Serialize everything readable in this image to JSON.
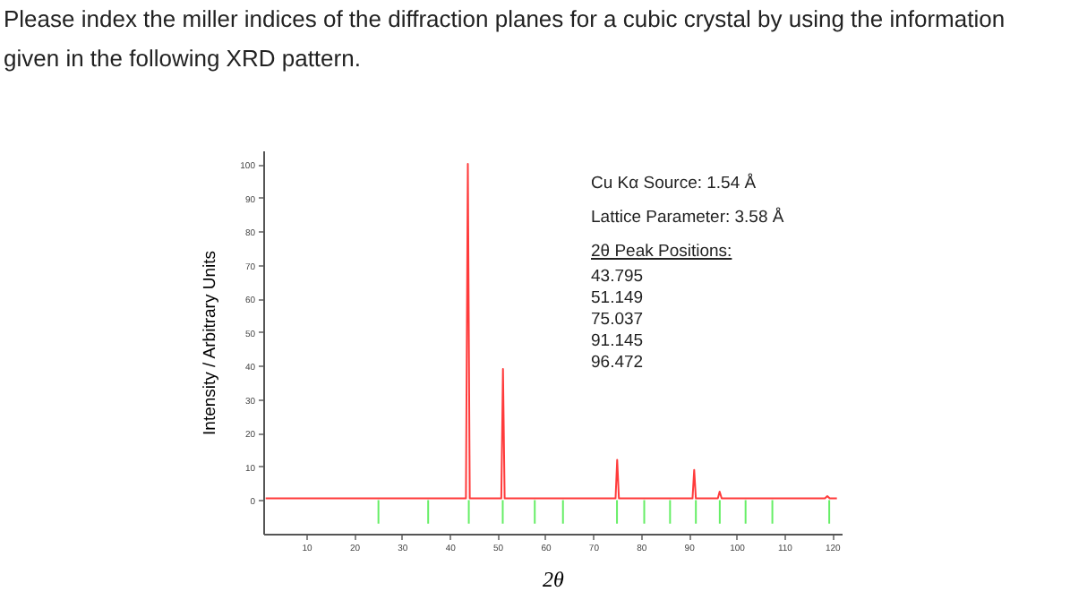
{
  "chart_data": {
    "type": "line",
    "title": "Please index the miller indices of the diffraction planes for a cubic crystal by using the information given in the following XRD pattern.",
    "xlabel": "2θ",
    "ylabel": "Intensity / Arbitrary Units",
    "xlim": [
      1,
      122
    ],
    "xticks": [
      10,
      20,
      30,
      40,
      50,
      60,
      70,
      80,
      90,
      100,
      110,
      120
    ],
    "ylim": [
      -10,
      104
    ],
    "yticks": [
      0,
      10,
      20,
      30,
      40,
      50,
      60,
      70,
      80,
      90,
      100
    ],
    "grid": false,
    "annotations": [
      "Cu Kα Source: 1.54 Å",
      "Lattice Parameter: 3.58 Å",
      "2θ Peak Positions:",
      "43.795",
      "51.149",
      "75.037",
      "91.145",
      "96.472"
    ],
    "series": [
      {
        "color": "#ff3b3b",
        "x": [
          1.5,
          43.4,
          43.8,
          44.2,
          50.8,
          51.15,
          51.5,
          74.7,
          75.04,
          75.4,
          90.8,
          91.15,
          91.5,
          96.1,
          96.47,
          96.9,
          118.5,
          119,
          119.5,
          121
        ],
        "values": [
          0.5,
          0.5,
          100,
          0.5,
          0.5,
          39,
          0.5,
          0.5,
          12,
          0.5,
          0.5,
          9,
          0.5,
          0.5,
          2.5,
          0.5,
          0.5,
          1.2,
          0.5,
          0.5
        ]
      },
      {
        "type": "bar",
        "color": "#66ee66",
        "x": [
          25.1,
          35.5,
          44,
          51.1,
          57.8,
          63.7,
          75,
          80.7,
          86.1,
          91.5,
          96.5,
          101.9,
          107.5,
          119.4
        ],
        "values": [
          -7,
          -7,
          -7,
          -7,
          -7,
          -7,
          -7,
          -7,
          -7,
          -7,
          -7,
          -7,
          -7,
          -7
        ]
      }
    ]
  }
}
